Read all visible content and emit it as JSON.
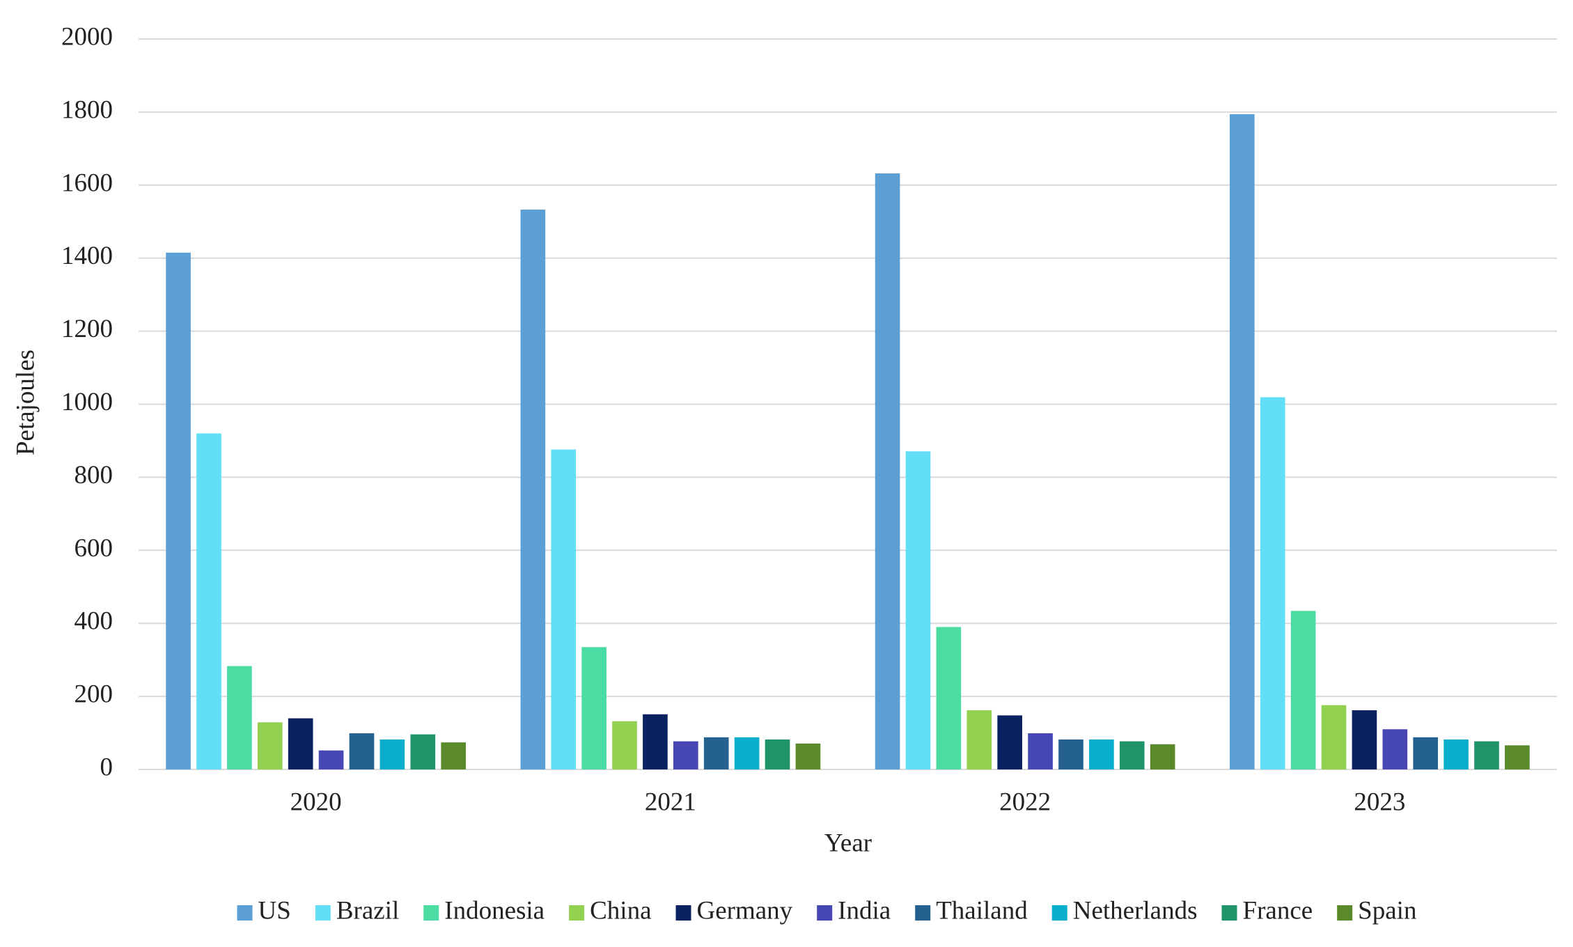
{
  "chart_data": {
    "type": "bar",
    "x_label": "Year",
    "y_label": "Petajoules",
    "categories": [
      "2020",
      "2021",
      "2022",
      "2023"
    ],
    "series": [
      {
        "name": "US",
        "color": "#5b9fd4",
        "values": [
          1415,
          1533,
          1632,
          1794
        ]
      },
      {
        "name": "Brazil",
        "color": "#62dff7",
        "values": [
          920,
          876,
          871,
          1019
        ]
      },
      {
        "name": "Indonesia",
        "color": "#4bdca3",
        "values": [
          283,
          335,
          390,
          434
        ]
      },
      {
        "name": "China",
        "color": "#92d050",
        "values": [
          129,
          132,
          162,
          176
        ]
      },
      {
        "name": "Germany",
        "color": "#0b2262",
        "values": [
          140,
          151,
          148,
          162
        ]
      },
      {
        "name": "India",
        "color": "#4646b4",
        "values": [
          52,
          77,
          99,
          110
        ]
      },
      {
        "name": "Thailand",
        "color": "#24618f",
        "values": [
          99,
          88,
          82,
          88
        ]
      },
      {
        "name": "Netherlands",
        "color": "#0aaecd",
        "values": [
          82,
          88,
          82,
          82
        ]
      },
      {
        "name": "France",
        "color": "#1f9468",
        "values": [
          96,
          82,
          77,
          77
        ]
      },
      {
        "name": "Spain",
        "color": "#5a8a2a",
        "values": [
          74,
          71,
          69,
          66
        ]
      }
    ],
    "ylim": [
      0,
      2000
    ],
    "yticks": [
      0,
      200,
      400,
      600,
      800,
      1000,
      1200,
      1400,
      1600,
      1800,
      2000
    ],
    "grid": true,
    "legend": "bottom"
  }
}
